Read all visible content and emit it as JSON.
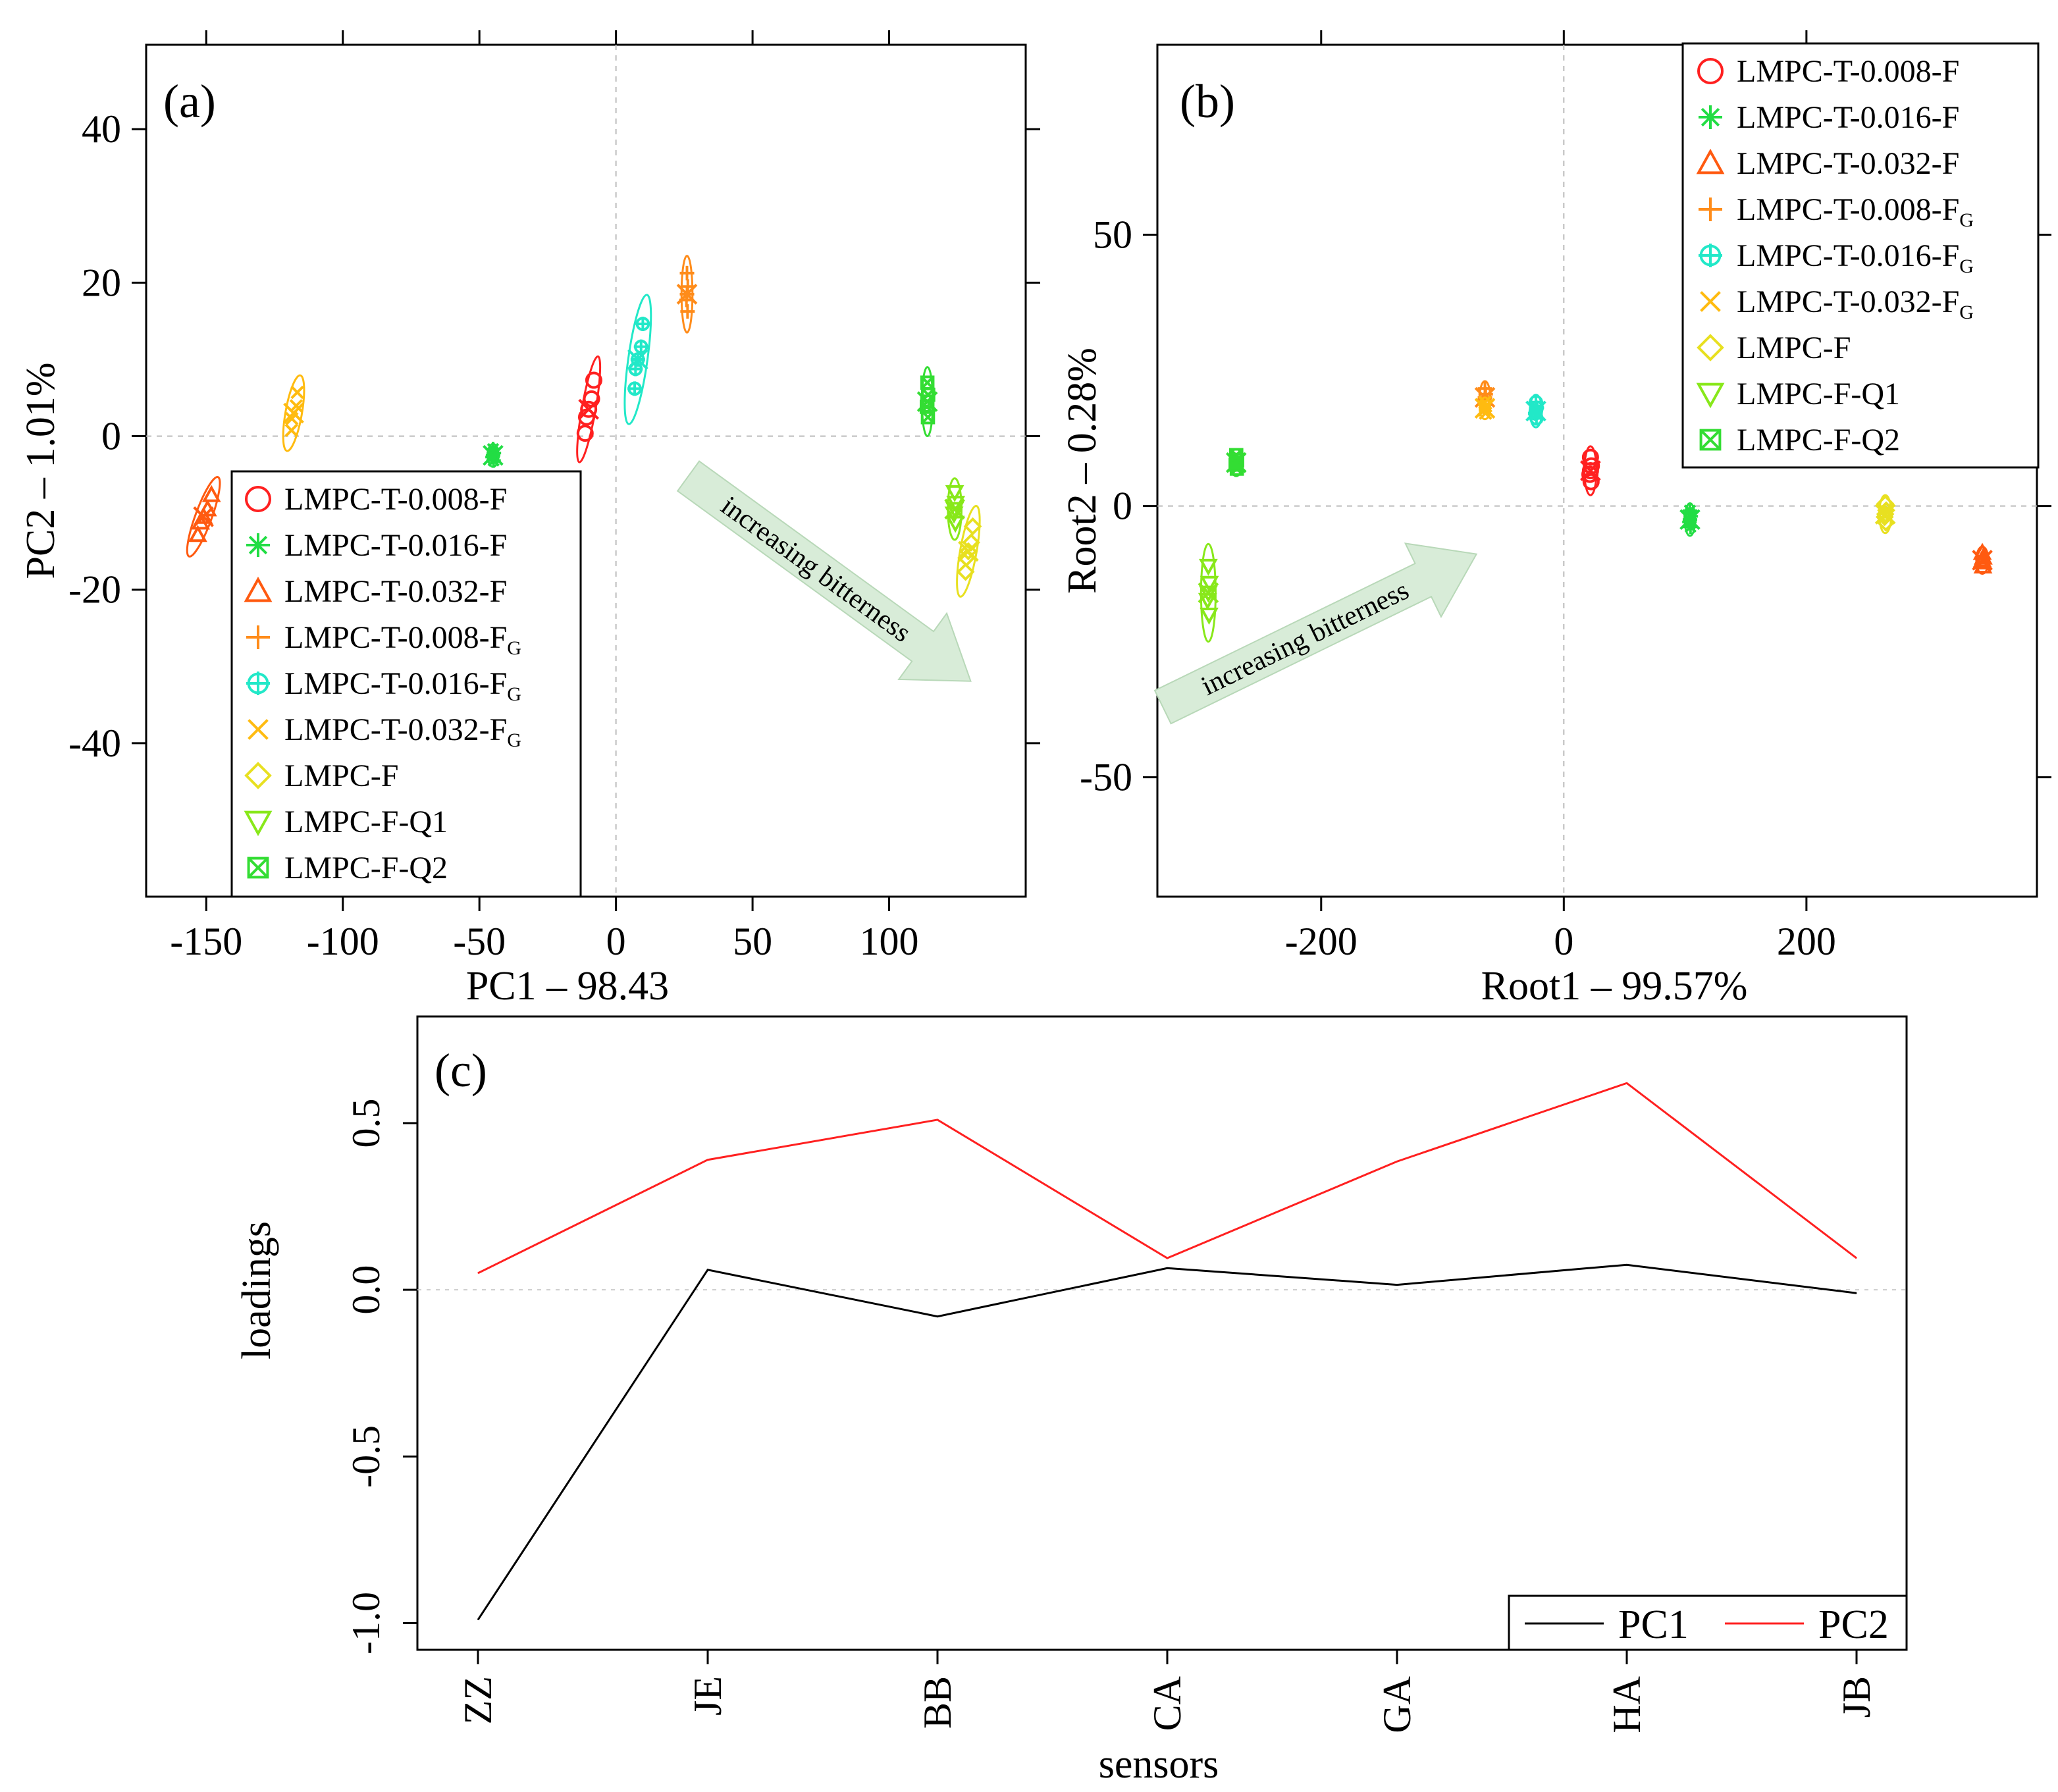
{
  "colors": {
    "LMPC-T-0.008-F": "#ff2020",
    "LMPC-T-0.016-F": "#22dd44",
    "LMPC-T-0.032-F": "#ff5a10",
    "LMPC-T-0.008-FG": "#ff8c1a",
    "LMPC-T-0.016-FG": "#22e8c8",
    "LMPC-T-0.032-FG": "#ffbb10",
    "LMPC-F": "#e8e020",
    "LMPC-F-Q1": "#88e81a",
    "LMPC-F-Q2": "#33dd33",
    "arrow_fill": "#d8ecd8",
    "pc1_line": "#000000",
    "pc2_line": "#ff2020"
  },
  "legend_entries": [
    {
      "key": "LMPC-T-0.008-F",
      "label": "LMPC-T-0.008-F",
      "sub": "",
      "marker": "circle"
    },
    {
      "key": "LMPC-T-0.016-F",
      "label": "LMPC-T-0.016-F",
      "sub": "",
      "marker": "asterisk"
    },
    {
      "key": "LMPC-T-0.032-F",
      "label": "LMPC-T-0.032-F",
      "sub": "",
      "marker": "triangle"
    },
    {
      "key": "LMPC-T-0.008-FG",
      "label": "LMPC-T-0.008-F",
      "sub": "G",
      "marker": "plus"
    },
    {
      "key": "LMPC-T-0.016-FG",
      "label": "LMPC-T-0.016-F",
      "sub": "G",
      "marker": "circleplus"
    },
    {
      "key": "LMPC-T-0.032-FG",
      "label": "LMPC-T-0.032-F",
      "sub": "G",
      "marker": "cross"
    },
    {
      "key": "LMPC-F",
      "label": "LMPC-F",
      "sub": "",
      "marker": "diamond"
    },
    {
      "key": "LMPC-F-Q1",
      "label": "LMPC-F-Q1",
      "sub": "",
      "marker": "triangledown"
    },
    {
      "key": "LMPC-F-Q2",
      "label": "LMPC-F-Q2",
      "sub": "",
      "marker": "boxx"
    }
  ],
  "chart_data": [
    {
      "type": "scatter",
      "panel_label": "(a)",
      "xlabel": "PC1 – 98.43",
      "ylabel": "PC2 – 1.01%",
      "xlim": [
        -172,
        150
      ],
      "ylim": [
        -60,
        51
      ],
      "xticks": [
        -150,
        -100,
        -50,
        0,
        50,
        100
      ],
      "xtick_labels": [
        "-150",
        "-100",
        "-50",
        "0",
        "50",
        "100"
      ],
      "yticks": [
        -40,
        -20,
        0,
        20,
        40
      ],
      "ytick_labels": [
        "-40",
        "-20",
        "0",
        "20",
        "40"
      ],
      "reference_lines": {
        "x": 0,
        "y": 0
      },
      "legend_position": "bottom-left",
      "annotation": "increasing bitterness",
      "groups": [
        {
          "key": "LMPC-T-0.008-F",
          "x": -10,
          "y": 3.5,
          "sx": 2.5,
          "sy": 7,
          "angle": 10
        },
        {
          "key": "LMPC-T-0.016-F",
          "x": -45,
          "y": -2.5,
          "sx": 2,
          "sy": 1.5,
          "angle": 0
        },
        {
          "key": "LMPC-T-0.032-F",
          "x": -151,
          "y": -10.5,
          "sx": 3,
          "sy": 5.5,
          "angle": 20
        },
        {
          "key": "LMPC-T-0.008-FG",
          "x": 26,
          "y": 18.5,
          "sx": 2,
          "sy": 5,
          "angle": 0
        },
        {
          "key": "LMPC-T-0.016-FG",
          "x": 8,
          "y": 10,
          "sx": 3.5,
          "sy": 8.5,
          "angle": 8
        },
        {
          "key": "LMPC-T-0.032-FG",
          "x": -118,
          "y": 3,
          "sx": 3,
          "sy": 5,
          "angle": 10
        },
        {
          "key": "LMPC-F",
          "x": 129,
          "y": -15,
          "sx": 3,
          "sy": 6,
          "angle": 10
        },
        {
          "key": "LMPC-F-Q1",
          "x": 124,
          "y": -9.5,
          "sx": 2.5,
          "sy": 4,
          "angle": 0
        },
        {
          "key": "LMPC-F-Q2",
          "x": 114,
          "y": 4.5,
          "sx": 2,
          "sy": 4.5,
          "angle": 0
        }
      ]
    },
    {
      "type": "scatter",
      "panel_label": "(b)",
      "xlabel": "Root1 – 99.57%",
      "ylabel": "Root2 – 0.28%",
      "xlim": [
        -335,
        390
      ],
      "ylim": [
        -72,
        85
      ],
      "xticks": [
        -200,
        0,
        200
      ],
      "xtick_labels": [
        "-200",
        "0",
        "200"
      ],
      "yticks": [
        -50,
        0,
        50
      ],
      "ytick_labels": [
        "-50",
        "0",
        "50"
      ],
      "reference_lines": {
        "x": 0,
        "y": 0
      },
      "legend_position": "top-right",
      "annotation": "increasing bitterness",
      "groups": [
        {
          "key": "LMPC-T-0.008-F",
          "x": 22,
          "y": 6.5,
          "sx": 5,
          "sy": 4.5,
          "angle": 0
        },
        {
          "key": "LMPC-T-0.016-F",
          "x": 104,
          "y": -2.5,
          "sx": 4,
          "sy": 3,
          "angle": 0
        },
        {
          "key": "LMPC-T-0.032-F",
          "x": 345,
          "y": -10,
          "sx": 5,
          "sy": 2.5,
          "angle": 0
        },
        {
          "key": "LMPC-T-0.008-FG",
          "x": -65,
          "y": 20,
          "sx": 4,
          "sy": 3,
          "angle": 0
        },
        {
          "key": "LMPC-T-0.016-FG",
          "x": -23,
          "y": 17.5,
          "sx": 5,
          "sy": 3,
          "angle": 0
        },
        {
          "key": "LMPC-T-0.032-FG",
          "x": -65,
          "y": 18,
          "sx": 4,
          "sy": 2,
          "angle": 0
        },
        {
          "key": "LMPC-F",
          "x": 265,
          "y": -1.5,
          "sx": 5,
          "sy": 3.5,
          "angle": 0
        },
        {
          "key": "LMPC-F-Q1",
          "x": -293,
          "y": -16,
          "sx": 6,
          "sy": 9,
          "angle": 0
        },
        {
          "key": "LMPC-F-Q2",
          "x": -270,
          "y": 8,
          "sx": 5,
          "sy": 2.5,
          "angle": 0
        }
      ]
    },
    {
      "type": "line",
      "panel_label": "(c)",
      "xlabel": "sensors",
      "ylabel": "loadings",
      "categories": [
        "ZZ",
        "JE",
        "BB",
        "CA",
        "GA",
        "HA",
        "JB"
      ],
      "ylim": [
        -1.08,
        0.82
      ],
      "yticks": [
        -1.0,
        -0.5,
        0.0,
        0.5
      ],
      "ytick_labels": [
        "-1.0",
        "-0.5",
        "0.0",
        "0.5"
      ],
      "reference_lines": {
        "y": 0
      },
      "legend_position": "bottom-right",
      "series": [
        {
          "name": "PC1",
          "values": [
            -0.99,
            0.06,
            -0.08,
            0.065,
            0.015,
            0.075,
            -0.01
          ]
        },
        {
          "name": "PC2",
          "values": [
            0.05,
            0.39,
            0.51,
            0.095,
            0.385,
            0.62,
            0.095
          ]
        }
      ]
    }
  ]
}
